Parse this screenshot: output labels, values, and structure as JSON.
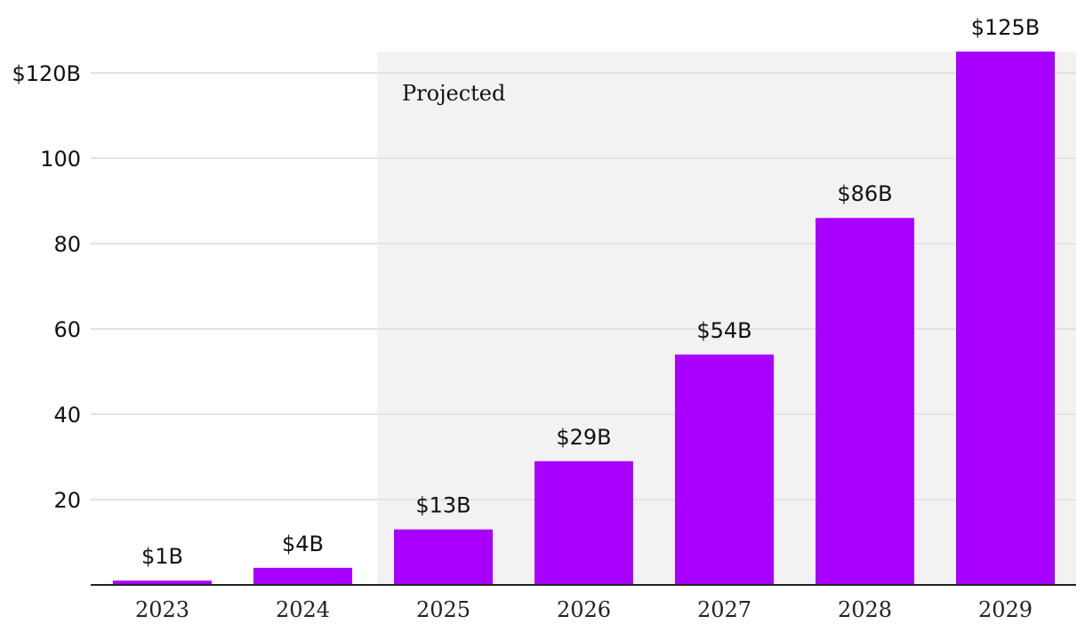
{
  "chart_data": {
    "type": "bar",
    "title": "",
    "xlabel": "",
    "ylabel": "",
    "categories": [
      "2023",
      "2024",
      "2025",
      "2026",
      "2027",
      "2028",
      "2029"
    ],
    "values": [
      1,
      4,
      13,
      29,
      54,
      86,
      125
    ],
    "value_labels": [
      "$1B",
      "$4B",
      "$13B",
      "$29B",
      "$54B",
      "$86B",
      "$125B"
    ],
    "ylim": [
      0,
      125
    ],
    "yticks": [
      {
        "value": 20,
        "label": "20"
      },
      {
        "value": 40,
        "label": "40"
      },
      {
        "value": 60,
        "label": "60"
      },
      {
        "value": 80,
        "label": "80"
      },
      {
        "value": 100,
        "label": "100"
      },
      {
        "value": 120,
        "label": "$120B"
      }
    ],
    "grid": true,
    "bar_color": "#aa00ff",
    "shaded_region": {
      "label": "Projected",
      "start_category": "2025",
      "end_category": "2029",
      "color": "#f2f2f2"
    }
  }
}
